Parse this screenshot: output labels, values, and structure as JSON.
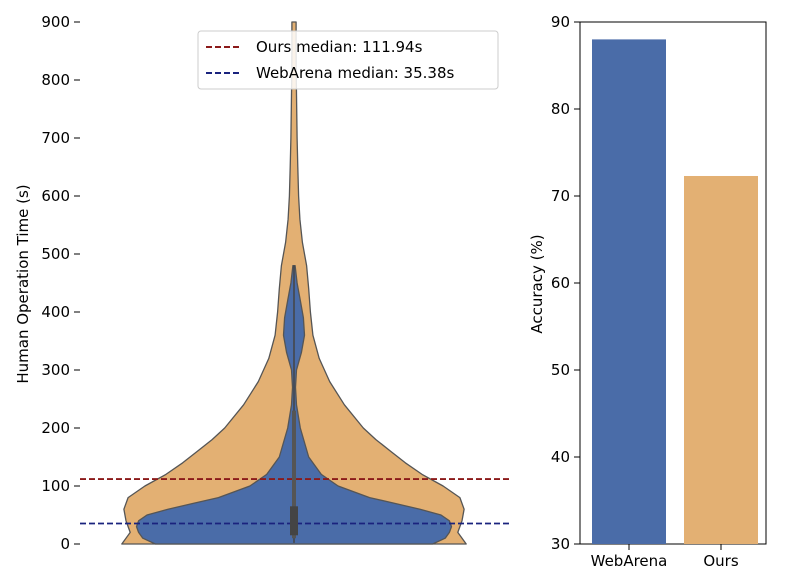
{
  "chart_data": [
    {
      "type": "violin",
      "ylabel": "Human Operation Time (s)",
      "ylim": [
        0,
        900
      ],
      "yticks": [
        0,
        100,
        200,
        300,
        400,
        500,
        600,
        700,
        800,
        900
      ],
      "series": [
        {
          "name": "Ours",
          "color": "#e3b073",
          "median": 111.94,
          "density_profile": [
            [
              0,
              0.82
            ],
            [
              20,
              0.78
            ],
            [
              40,
              0.8
            ],
            [
              60,
              0.81
            ],
            [
              80,
              0.79
            ],
            [
              100,
              0.71
            ],
            [
              120,
              0.61
            ],
            [
              140,
              0.53
            ],
            [
              160,
              0.46
            ],
            [
              180,
              0.39
            ],
            [
              200,
              0.33
            ],
            [
              240,
              0.24
            ],
            [
              280,
              0.17
            ],
            [
              320,
              0.12
            ],
            [
              360,
              0.09
            ],
            [
              400,
              0.078
            ],
            [
              440,
              0.07
            ],
            [
              480,
              0.06
            ],
            [
              520,
              0.04
            ],
            [
              560,
              0.028
            ],
            [
              600,
              0.022
            ],
            [
              650,
              0.018
            ],
            [
              700,
              0.015
            ],
            [
              750,
              0.013
            ],
            [
              800,
              0.011
            ],
            [
              850,
              0.01
            ],
            [
              900,
              0.01
            ]
          ]
        },
        {
          "name": "WebArena",
          "color": "#4a6ca8",
          "median": 35.38,
          "density_profile": [
            [
              0,
              0.66
            ],
            [
              10,
              0.72
            ],
            [
              20,
              0.74
            ],
            [
              30,
              0.75
            ],
            [
              40,
              0.74
            ],
            [
              50,
              0.7
            ],
            [
              60,
              0.6
            ],
            [
              70,
              0.48
            ],
            [
              80,
              0.36
            ],
            [
              100,
              0.21
            ],
            [
              120,
              0.13
            ],
            [
              150,
              0.07
            ],
            [
              200,
              0.03
            ],
            [
              240,
              0.012
            ],
            [
              270,
              0.007
            ],
            [
              300,
              0.012
            ],
            [
              330,
              0.035
            ],
            [
              360,
              0.05
            ],
            [
              390,
              0.045
            ],
            [
              420,
              0.03
            ],
            [
              450,
              0.015
            ],
            [
              480,
              0.005
            ]
          ]
        }
      ],
      "median_lines": [
        {
          "label": "Ours median: 111.94s",
          "value": 111.94,
          "color": "#8b1a1a"
        },
        {
          "label": "WebArena median: 35.38s",
          "value": 35.38,
          "color": "#1a237e"
        }
      ],
      "legend_position": "top-center"
    },
    {
      "type": "bar",
      "categories": [
        "WebArena",
        "Ours"
      ],
      "values": [
        88.0,
        72.3
      ],
      "colors": [
        "#4a6ca8",
        "#e3b073"
      ],
      "ylabel": "Accuracy (%)",
      "ylim": [
        30,
        90
      ],
      "yticks": [
        30,
        40,
        50,
        60,
        70,
        80,
        90
      ]
    }
  ]
}
